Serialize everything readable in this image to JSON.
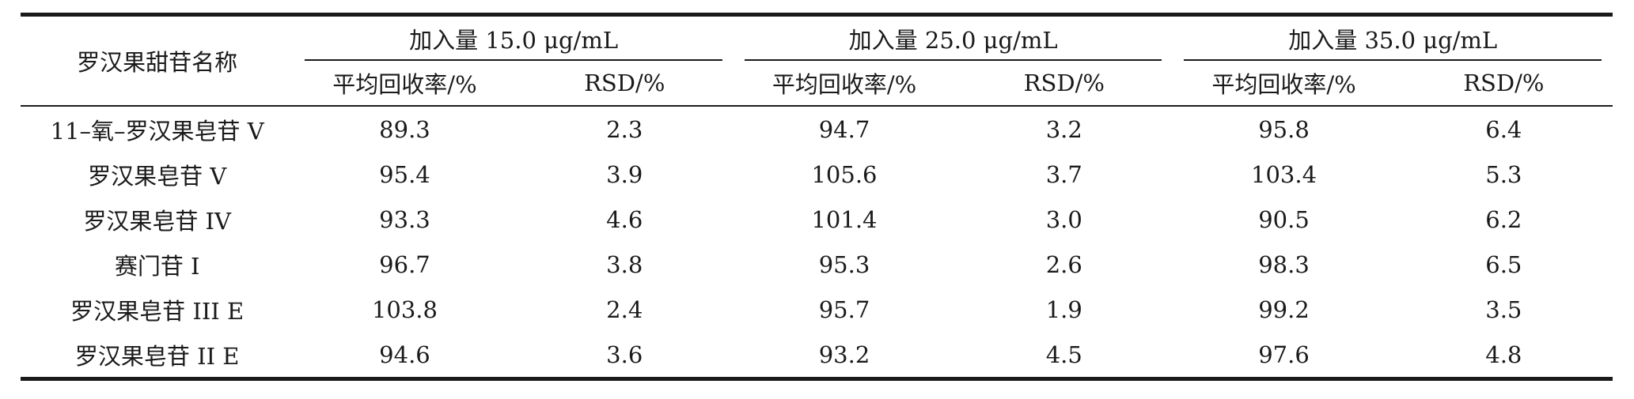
{
  "table": {
    "name_header": "罗汉果甜苷名称",
    "groups": [
      {
        "label": "加入量 15.0 μg/mL"
      },
      {
        "label": "加入量 25.0 μg/mL"
      },
      {
        "label": "加入量 35.0 μg/mL"
      }
    ],
    "sub_headers": {
      "recovery": "平均回收率/%",
      "rsd": "RSD/%"
    },
    "rows": [
      {
        "name": "11–氧–罗汉果皂苷 V",
        "values": [
          "89.3",
          "2.3",
          "94.7",
          "3.2",
          "95.8",
          "6.4"
        ]
      },
      {
        "name": "罗汉果皂苷 V",
        "values": [
          "95.4",
          "3.9",
          "105.6",
          "3.7",
          "103.4",
          "5.3"
        ]
      },
      {
        "name": "罗汉果皂苷 IV",
        "values": [
          "93.3",
          "4.6",
          "101.4",
          "3.0",
          "90.5",
          "6.2"
        ]
      },
      {
        "name": "赛门苷 I",
        "values": [
          "96.7",
          "3.8",
          "95.3",
          "2.6",
          "98.3",
          "6.5"
        ]
      },
      {
        "name": "罗汉果皂苷 III E",
        "values": [
          "103.8",
          "2.4",
          "95.7",
          "1.9",
          "99.2",
          "3.5"
        ]
      },
      {
        "name": "罗汉果皂苷 II E",
        "values": [
          "94.6",
          "3.6",
          "93.2",
          "4.5",
          "97.6",
          "4.8"
        ]
      }
    ]
  }
}
